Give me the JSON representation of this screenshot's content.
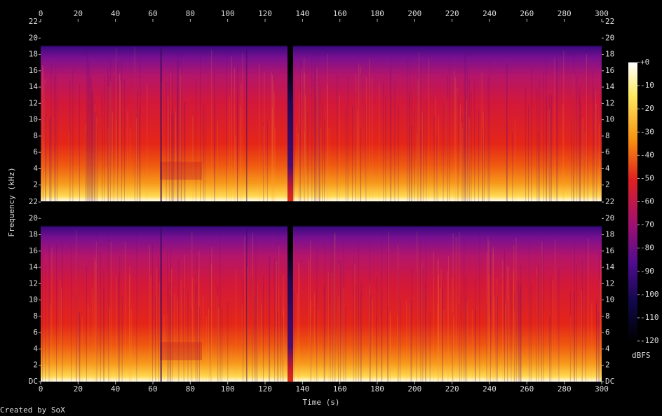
{
  "chart_data": {
    "type": "spectrogram",
    "xlabel": "Time (s)",
    "ylabel": "Frequency (kHz)",
    "xlim": [
      0,
      300
    ],
    "xticks": [
      0,
      20,
      40,
      60,
      80,
      100,
      120,
      140,
      160,
      180,
      200,
      220,
      240,
      260,
      280,
      300
    ],
    "channels": [
      {
        "ylim": [
          0,
          22
        ],
        "yticks": [
          2,
          4,
          6,
          8,
          10,
          12,
          14,
          16,
          18,
          20,
          22
        ]
      },
      {
        "ylim": [
          0,
          22
        ],
        "yticks": [
          {
            "value": 0,
            "label": "DC"
          },
          2,
          4,
          6,
          8,
          10,
          12,
          14,
          16,
          18,
          20,
          22
        ]
      }
    ],
    "colorbar": {
      "label": "dBFS",
      "lim": [
        -120,
        0
      ],
      "ticks": [
        {
          "value": 0,
          "label": "+0"
        },
        -10,
        -20,
        -30,
        -40,
        -50,
        -60,
        -70,
        -80,
        -90,
        -100,
        -110,
        -120
      ]
    },
    "credit": "Created by SoX"
  }
}
